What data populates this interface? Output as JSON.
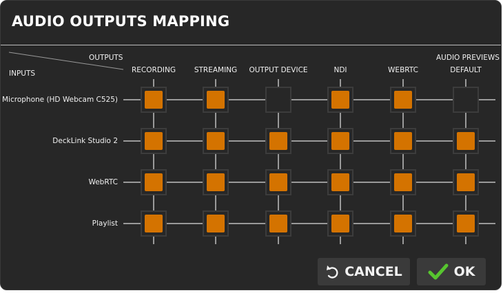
{
  "dialog": {
    "title": "AUDIO OUTPUTS MAPPING",
    "corner_outputs_label": "OUTPUTS",
    "corner_inputs_label": "INPUTS",
    "audio_previews_label": "AUDIO PREVIEWS"
  },
  "columns": [
    {
      "label": "RECORDING"
    },
    {
      "label": "STREAMING"
    },
    {
      "label": "OUTPUT DEVICE"
    },
    {
      "label": "NDI"
    },
    {
      "label": "WEBRTC"
    },
    {
      "label": "DEFAULT"
    }
  ],
  "rows": [
    {
      "label": "Microphone (HD Webcam C525)",
      "enabled": [
        true,
        true,
        false,
        true,
        true,
        false
      ]
    },
    {
      "label": "DeckLink Studio 2",
      "enabled": [
        true,
        true,
        true,
        true,
        true,
        true
      ]
    },
    {
      "label": "WebRTC",
      "enabled": [
        true,
        true,
        true,
        true,
        true,
        true
      ]
    },
    {
      "label": "Playlist",
      "enabled": [
        true,
        true,
        true,
        true,
        true,
        true
      ]
    }
  ],
  "buttons": {
    "cancel_label": "CANCEL",
    "ok_label": "OK"
  },
  "colors": {
    "accent": "#d47300",
    "ok_check": "#57c52f",
    "background": "#272727",
    "button": "#3a3a3a"
  },
  "icons": {
    "cancel": "undo-arrow-icon",
    "ok": "check-icon"
  }
}
